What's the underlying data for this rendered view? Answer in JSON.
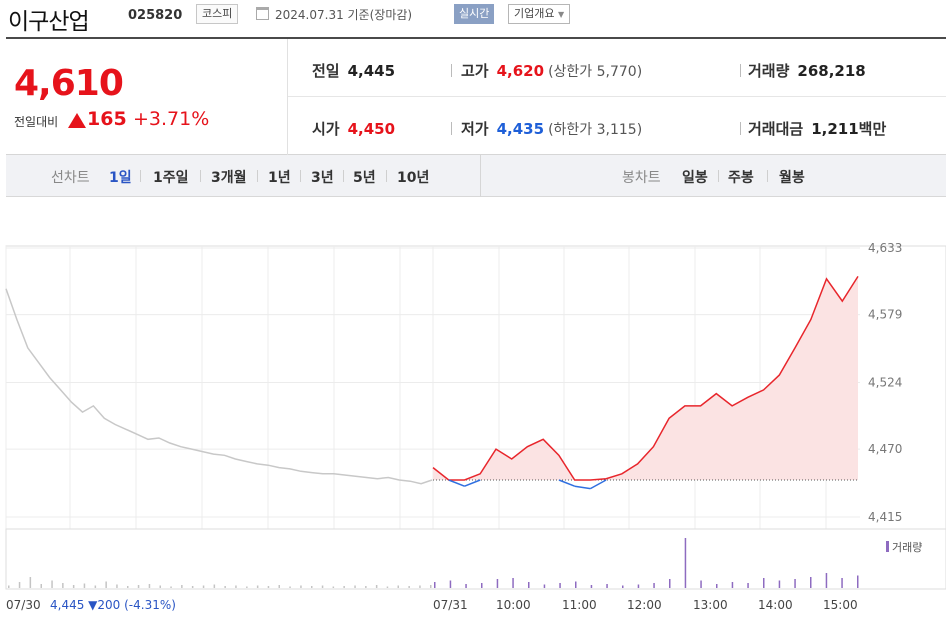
{
  "header": {
    "name": "이구산업",
    "code": "025820",
    "market": "코스피",
    "date": "2024.07.31  기준(장마감)",
    "realtime_label": "실시간",
    "corp_label": "기업개요"
  },
  "quote": {
    "price": "4,610",
    "compare_label": "전일대비",
    "change": "165",
    "change_pct": "+3.71%",
    "prev_label": "전일",
    "prev_value": "4,445",
    "high_label": "고가",
    "high_value": "4,620",
    "upper_limit": "(상한가 5,770)",
    "volume_label": "거래량",
    "volume_value": "268,218",
    "open_label": "시가",
    "open_value": "4,450",
    "low_label": "저가",
    "low_value": "4,435",
    "lower_limit": "(하한가 3,115)",
    "amount_label": "거래대금",
    "amount_value": "1,211",
    "amount_unit": "백만"
  },
  "tabs": {
    "line_chart_label": "선차트",
    "periods": [
      "1일",
      "1주일",
      "3개월",
      "1년",
      "3년",
      "5년",
      "10년"
    ],
    "active_period": "1일",
    "candle_label": "봉차트",
    "candle_periods": [
      "일봉",
      "주봉",
      "월봉"
    ]
  },
  "chart_data": {
    "type": "line",
    "y_ticks": [
      "4,633",
      "4,579",
      "4,524",
      "4,470",
      "4,415"
    ],
    "ylim": [
      4415,
      4633
    ],
    "x_ticks": [
      "07/30",
      "07/31",
      "10:00",
      "11:00",
      "12:00",
      "13:00",
      "14:00",
      "15:00"
    ],
    "prev_close": 4445,
    "volume_legend": "거래량",
    "prev_day_summary": "4,445 ▼200 (-4.31%)",
    "series": [
      {
        "day": "07/30",
        "values": [
          4600,
          4575,
          4552,
          4540,
          4528,
          4518,
          4508,
          4500,
          4505,
          4495,
          4490,
          4486,
          4482,
          4478,
          4479,
          4475,
          4472,
          4470,
          4468,
          4466,
          4465,
          4462,
          4460,
          4458,
          4457,
          4455,
          4454,
          4452,
          4451,
          4450,
          4450,
          4449,
          4448,
          4447,
          4446,
          4447,
          4445,
          4444,
          4442,
          4445
        ]
      },
      {
        "day": "07/31",
        "times": [
          "09:00",
          "09:15",
          "09:30",
          "09:45",
          "10:00",
          "10:15",
          "10:30",
          "10:45",
          "11:00",
          "11:10",
          "11:20",
          "11:30",
          "11:45",
          "12:00",
          "12:15",
          "12:30",
          "12:45",
          "13:00",
          "13:15",
          "13:30",
          "13:45",
          "14:00",
          "14:15",
          "14:30",
          "14:45",
          "15:00",
          "15:15",
          "15:30"
        ],
        "values": [
          4455,
          4445,
          4440,
          4450,
          4470,
          4462,
          4472,
          4478,
          4465,
          4440,
          4438,
          4446,
          4450,
          4458,
          4472,
          4495,
          4505,
          4505,
          4515,
          4505,
          4512,
          4518,
          4530,
          4552,
          4575,
          4608,
          4590,
          4610
        ]
      }
    ],
    "volume": {
      "ylim": [
        0,
        1
      ],
      "prev_day_levels": [
        0.05,
        0.12,
        0.22,
        0.08,
        0.15,
        0.1,
        0.06,
        0.09,
        0.05,
        0.13,
        0.07,
        0.04,
        0.06,
        0.08,
        0.05,
        0.03,
        0.06,
        0.04,
        0.05,
        0.07,
        0.04,
        0.05,
        0.03,
        0.05,
        0.04,
        0.06,
        0.03,
        0.05,
        0.04,
        0.05,
        0.03,
        0.04,
        0.05,
        0.04,
        0.06,
        0.03,
        0.05,
        0.04,
        0.05,
        0.06
      ],
      "day_levels": [
        0.12,
        0.15,
        0.08,
        0.1,
        0.18,
        0.2,
        0.12,
        0.07,
        0.1,
        0.13,
        0.06,
        0.08,
        0.05,
        0.07,
        0.1,
        0.18,
        1.0,
        0.15,
        0.08,
        0.12,
        0.1,
        0.2,
        0.15,
        0.18,
        0.22,
        0.3,
        0.2,
        0.25
      ]
    }
  }
}
